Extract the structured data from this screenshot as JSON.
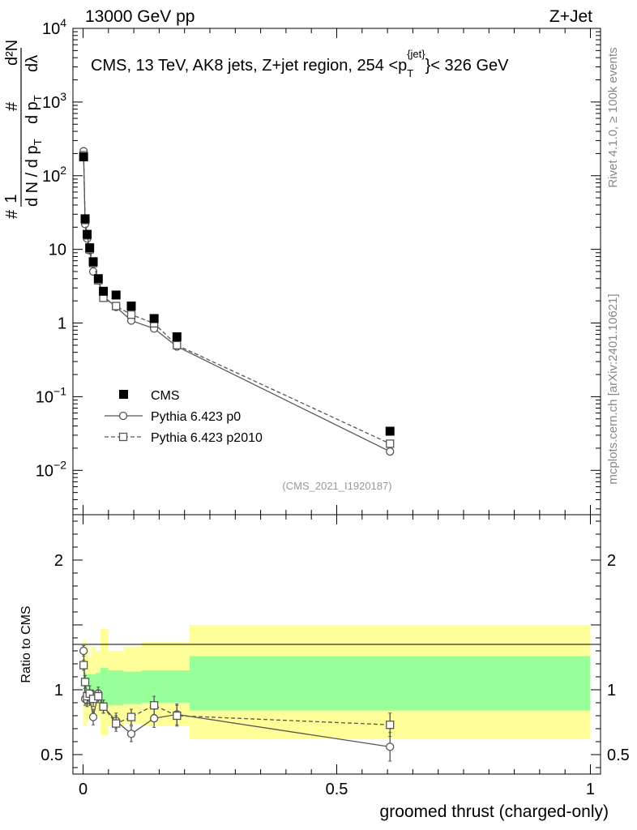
{
  "header": {
    "left": "13000 GeV pp",
    "right": "Z+Jet"
  },
  "side_labels": {
    "top": "Rivet 4.1.0, ≥ 100k events",
    "bottom": "mcplots.cern.ch [arXiv:2401.10621]"
  },
  "chart_data": {
    "type": "scatter",
    "title": "CMS, 13 TeV, AK8 jets, Z+jet region, 254 <p_T^{jet}< 326 GeV",
    "title_parts": {
      "main": "CMS, 13 TeV, AK8 jets, Z+jet region, 254 <p",
      "sub": "T",
      "sup": "{jet}",
      "tail": "}< 326 GeV"
    },
    "analysis_id": "(CMS_2021_I1920187)",
    "xlabel": "groomed thrust (charged-only)",
    "ylabel": "1/dN/dp_T d^2N/dp_T dlambda",
    "ylabel_parts": {
      "hash": "#",
      "one": "1",
      "dN": "d N / d p",
      "sub": "T",
      "d2N": "d²N",
      "dpt": "d p",
      "dl": "dλ"
    },
    "ratio_ylabel": "Ratio to CMS",
    "xlim": [
      -0.02,
      1.02
    ],
    "ylim": [
      0.0025,
      10000
    ],
    "ratio_ylim": [
      0.35,
      2.35
    ],
    "x_ticks": [
      {
        "v": 0,
        "label": "0"
      },
      {
        "v": 0.5,
        "label": "0.5"
      },
      {
        "v": 1,
        "label": "1"
      }
    ],
    "y_ticks": [
      {
        "v": 0.01,
        "base": "10",
        "exp": "−2"
      },
      {
        "v": 0.1,
        "base": "10",
        "exp": "−1"
      },
      {
        "v": 1,
        "base": "1",
        "exp": ""
      },
      {
        "v": 10,
        "base": "10",
        "exp": ""
      },
      {
        "v": 100,
        "base": "10",
        "exp": "2"
      },
      {
        "v": 1000,
        "base": "10",
        "exp": "3"
      },
      {
        "v": 10000,
        "base": "10",
        "exp": "4"
      }
    ],
    "ratio_ticks": [
      {
        "v": 0.5,
        "label": "0.5"
      },
      {
        "v": 1,
        "label": "1"
      },
      {
        "v": 2,
        "label": "2"
      }
    ],
    "legend": [
      "CMS",
      "Pythia 6.423 p0",
      "Pythia 6.423 p2010"
    ],
    "cms": {
      "x": [
        0.001,
        0.004,
        0.008,
        0.013,
        0.02,
        0.03,
        0.04,
        0.065,
        0.095,
        0.14,
        0.185,
        0.605
      ],
      "y": [
        180,
        26,
        16,
        10.5,
        6.8,
        4.0,
        2.7,
        2.4,
        1.7,
        1.15,
        0.65,
        0.034
      ]
    },
    "series": [
      {
        "name": "Pythia 6.423 p0",
        "style": "solid-circle",
        "x": [
          0.001,
          0.004,
          0.008,
          0.013,
          0.02,
          0.03,
          0.04,
          0.065,
          0.095,
          0.14,
          0.185,
          0.605
        ],
        "y": [
          215,
          22,
          14,
          9.7,
          5.0,
          3.9,
          2.3,
          1.65,
          1.08,
          0.84,
          0.48,
          0.018
        ],
        "ratio": [
          1.3,
          0.93,
          0.92,
          0.94,
          0.79,
          0.97,
          0.87,
          0.76,
          0.66,
          0.78,
          0.81,
          0.56
        ],
        "ratio_err": [
          0.04,
          0.05,
          0.05,
          0.06,
          0.06,
          0.05,
          0.05,
          0.06,
          0.06,
          0.07,
          0.08,
          0.11
        ]
      },
      {
        "name": "Pythia 6.423 p2010",
        "style": "dashed-square",
        "x": [
          0.001,
          0.004,
          0.008,
          0.013,
          0.02,
          0.03,
          0.04,
          0.065,
          0.095,
          0.14,
          0.185,
          0.605
        ],
        "y": [
          190,
          25,
          15.5,
          10.0,
          6.5,
          3.8,
          2.2,
          1.7,
          1.3,
          0.99,
          0.5,
          0.023
        ],
        "ratio": [
          1.19,
          1.06,
          0.95,
          0.97,
          0.93,
          0.95,
          0.87,
          0.74,
          0.79,
          0.88,
          0.8,
          0.73
        ],
        "ratio_err": [
          0.04,
          0.05,
          0.05,
          0.06,
          0.06,
          0.05,
          0.05,
          0.06,
          0.06,
          0.07,
          0.08,
          0.09
        ]
      }
    ],
    "ratio_bands": [
      {
        "x0": 0.0,
        "x1": 0.006,
        "g_lo": 0.89,
        "g_hi": 1.13,
        "y_lo": 0.72,
        "y_hi": 1.38
      },
      {
        "x0": 0.006,
        "x1": 0.011,
        "g_lo": 0.9,
        "g_hi": 1.12,
        "y_lo": 0.75,
        "y_hi": 1.33
      },
      {
        "x0": 0.011,
        "x1": 0.016,
        "g_lo": 0.9,
        "g_hi": 1.12,
        "y_lo": 0.8,
        "y_hi": 1.25
      },
      {
        "x0": 0.016,
        "x1": 0.025,
        "g_lo": 0.91,
        "g_hi": 1.12,
        "y_lo": 0.85,
        "y_hi": 1.33
      },
      {
        "x0": 0.025,
        "x1": 0.034,
        "g_lo": 0.9,
        "g_hi": 1.13,
        "y_lo": 0.8,
        "y_hi": 1.3
      },
      {
        "x0": 0.034,
        "x1": 0.05,
        "g_lo": 0.86,
        "g_hi": 1.17,
        "y_lo": 0.65,
        "y_hi": 1.47
      },
      {
        "x0": 0.05,
        "x1": 0.08,
        "g_lo": 0.88,
        "g_hi": 1.15,
        "y_lo": 0.72,
        "y_hi": 1.3
      },
      {
        "x0": 0.08,
        "x1": 0.115,
        "g_lo": 0.89,
        "g_hi": 1.14,
        "y_lo": 0.74,
        "y_hi": 1.33
      },
      {
        "x0": 0.115,
        "x1": 0.165,
        "g_lo": 0.9,
        "g_hi": 1.15,
        "y_lo": 0.72,
        "y_hi": 1.37
      },
      {
        "x0": 0.165,
        "x1": 0.21,
        "g_lo": 0.9,
        "g_hi": 1.15,
        "y_lo": 0.72,
        "y_hi": 1.37
      },
      {
        "x0": 0.21,
        "x1": 1.0,
        "g_lo": 0.84,
        "g_hi": 1.26,
        "y_lo": 0.62,
        "y_hi": 1.5
      }
    ],
    "colors": {
      "green": "#99ff99",
      "yellow": "#ffff99",
      "mc": "#555555",
      "data": "#000000"
    }
  }
}
